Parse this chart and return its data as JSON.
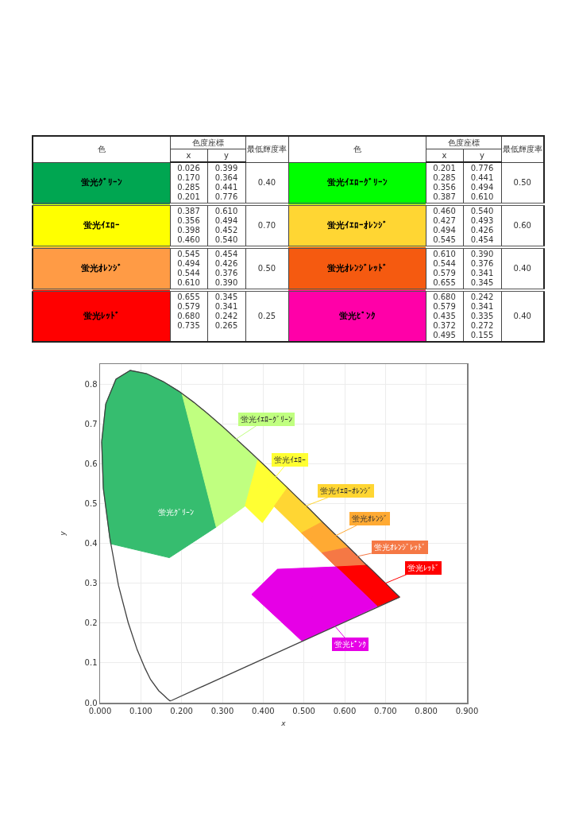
{
  "chart_data": [
    {
      "type": "other",
      "annotations": [
        "色",
        "色度座標",
        "x",
        "y",
        "最低輝度率",
        "蛍光ｸﾞﾘｰﾝ",
        "0.026\n0.170\n0.285\n0.201",
        "0.399\n0.364\n0.441\n0.776",
        "0.40",
        "蛍光ｲｴﾛｰｸﾞﾘｰﾝ",
        "0.201\n0.285\n0.356\n0.387",
        "0.776\n0.441\n0.494\n0.610",
        "0.50",
        "蛍光ｲｴﾛｰ",
        "0.387\n0.356\n0.398\n0.460",
        "0.610\n0.494\n0.452\n0.540",
        "0.70",
        "蛍光ｲｴﾛｰｵﾚﾝｼﾞ",
        "0.460\n0.427\n0.494\n0.545",
        "0.540\n0.493\n0.426\n0.454",
        "0.60",
        "蛍光ｵﾚﾝｼﾞ",
        "0.545\n0.494\n0.544\n0.610",
        "0.454\n0.426\n0.376\n0.390",
        "0.50",
        "蛍光ｵﾚﾝｼﾞﾚｯﾄﾞ",
        "0.610\n0.544\n0.579\n0.655",
        "0.390\n0.376\n0.341\n0.345",
        "0.40",
        "蛍光ﾚｯﾄﾞ",
        "0.655\n0.579\n0.680\n0.735",
        "0.345\n0.341\n0.242\n0.265",
        "0.25",
        "蛍光ﾋﾟﾝｸ",
        "0.680\n0.579\n0.435\n0.372\n0.495",
        "0.242\n0.341\n0.335\n0.272\n0.155",
        "0.40"
      ],
      "colors": [
        "#00a651",
        "#00ff00",
        "#ffff00",
        "#ffd633",
        "#ff9b45",
        "#f55a10",
        "#ff0000",
        "#ff00a8"
      ]
    },
    {
      "type": "area",
      "xlabel": "x",
      "ylabel": "y",
      "xlim": [
        0,
        0.9
      ],
      "xticks": [
        {
          "value": 0,
          "label": "0.000"
        },
        {
          "value": 0.1,
          "label": "0.100"
        },
        {
          "value": 0.2,
          "label": "0.200"
        },
        {
          "value": 0.3,
          "label": "0.300"
        },
        {
          "value": 0.4,
          "label": "0.400"
        },
        {
          "value": 0.5,
          "label": "0.500"
        },
        {
          "value": 0.6,
          "label": "0.600"
        },
        {
          "value": 0.7,
          "label": "0.700"
        },
        {
          "value": 0.8,
          "label": "0.800"
        },
        {
          "value": 0.9,
          "label": "0.900"
        }
      ],
      "ylim": [
        0,
        0.85
      ],
      "yticks": [
        {
          "value": 0,
          "label": "0.0"
        },
        0.1,
        0.2,
        0.3,
        0.4,
        0.5,
        0.6,
        0.7,
        0.8
      ],
      "grid": true,
      "series": [
        {
          "name": "蛍光ｸﾞﾘｰﾝ",
          "color": "#36bd6f",
          "x": [
            0.026,
            0.17,
            0.285,
            0.201,
            0.193,
            0.155,
            0.114,
            0.074,
            0.039,
            0.014,
            0.004,
            0.008,
            0.024
          ],
          "values": [
            0.399,
            0.364,
            0.441,
            0.776,
            0.782,
            0.806,
            0.826,
            0.834,
            0.812,
            0.75,
            0.655,
            0.538,
            0.413
          ]
        },
        {
          "name": "蛍光ｲｴﾛｰｸﾞﾘｰﾝ",
          "color": "#c0ff80",
          "x": [
            0.201,
            0.285,
            0.356,
            0.387,
            0.373,
            0.337,
            0.302,
            0.266,
            0.23
          ],
          "values": [
            0.776,
            0.441,
            0.494,
            0.61,
            0.625,
            0.659,
            0.692,
            0.724,
            0.754
          ]
        },
        {
          "name": "蛍光ｲｴﾛｰ",
          "color": "#ffff33",
          "x": [
            0.387,
            0.356,
            0.398,
            0.46,
            0.444,
            0.409
          ],
          "values": [
            0.61,
            0.494,
            0.452,
            0.54,
            0.555,
            0.59
          ]
        },
        {
          "name": "蛍光ｲｴﾛｰｵﾚﾝｼﾞ",
          "color": "#ffd633",
          "x": [
            0.46,
            0.427,
            0.494,
            0.545,
            0.513,
            0.479
          ],
          "values": [
            0.54,
            0.493,
            0.426,
            0.454,
            0.487,
            0.52
          ]
        },
        {
          "name": "蛍光ｵﾚﾝｼﾞ",
          "color": "#ffaa33",
          "x": [
            0.545,
            0.494,
            0.544,
            0.61,
            0.603,
            0.575
          ],
          "values": [
            0.454,
            0.426,
            0.376,
            0.39,
            0.397,
            0.424
          ]
        },
        {
          "name": "蛍光ｵﾚﾝｼﾞﾚｯﾄﾞ",
          "color": "#f57845",
          "x": [
            0.61,
            0.544,
            0.579,
            0.655,
            0.648,
            0.627
          ],
          "values": [
            0.39,
            0.376,
            0.341,
            0.345,
            0.351,
            0.373
          ]
        },
        {
          "name": "蛍光ﾚｯﾄﾞ",
          "color": "#ff0000",
          "x": [
            0.655,
            0.579,
            0.68,
            0.735,
            0.73,
            0.726,
            0.719,
            0.708,
            0.692,
            0.666
          ],
          "values": [
            0.345,
            0.341,
            0.242,
            0.265,
            0.27,
            0.274,
            0.281,
            0.292,
            0.308,
            0.334
          ]
        },
        {
          "name": "蛍光ﾋﾟﾝｸ",
          "color": "#e600e6",
          "x": [
            0.68,
            0.579,
            0.435,
            0.372,
            0.495
          ],
          "values": [
            0.242,
            0.341,
            0.335,
            0.272,
            0.155
          ]
        },
        {
          "type": "line",
          "color": "#404040",
          "x": [
            0.004,
            0.008,
            0.024,
            0.045,
            0.069,
            0.091,
            0.11,
            0.124,
            0.144,
            0.157,
            0.164,
            0.171,
            0.174
          ],
          "values": [
            0.655,
            0.538,
            0.413,
            0.295,
            0.201,
            0.133,
            0.087,
            0.058,
            0.03,
            0.018,
            0.011,
            0.005,
            0.005
          ]
        },
        {
          "type": "line",
          "color": "#404040",
          "x": [
            0.004,
            0.014,
            0.039,
            0.074,
            0.114,
            0.155,
            0.193,
            0.23,
            0.266,
            0.302,
            0.337,
            0.373,
            0.409,
            0.444,
            0.479,
            0.513,
            0.545,
            0.575,
            0.603,
            0.627,
            0.648,
            0.666,
            0.692,
            0.708,
            0.719,
            0.726,
            0.73,
            0.735
          ],
          "values": [
            0.655,
            0.75,
            0.812,
            0.834,
            0.826,
            0.806,
            0.782,
            0.754,
            0.724,
            0.692,
            0.659,
            0.625,
            0.59,
            0.555,
            0.52,
            0.487,
            0.454,
            0.424,
            0.397,
            0.373,
            0.351,
            0.334,
            0.308,
            0.292,
            0.281,
            0.274,
            0.27,
            0.265
          ]
        },
        {
          "type": "line",
          "color": "#404040",
          "x": [
            0.174,
            0.735
          ],
          "values": [
            0.005,
            0.265
          ]
        }
      ]
    }
  ]
}
